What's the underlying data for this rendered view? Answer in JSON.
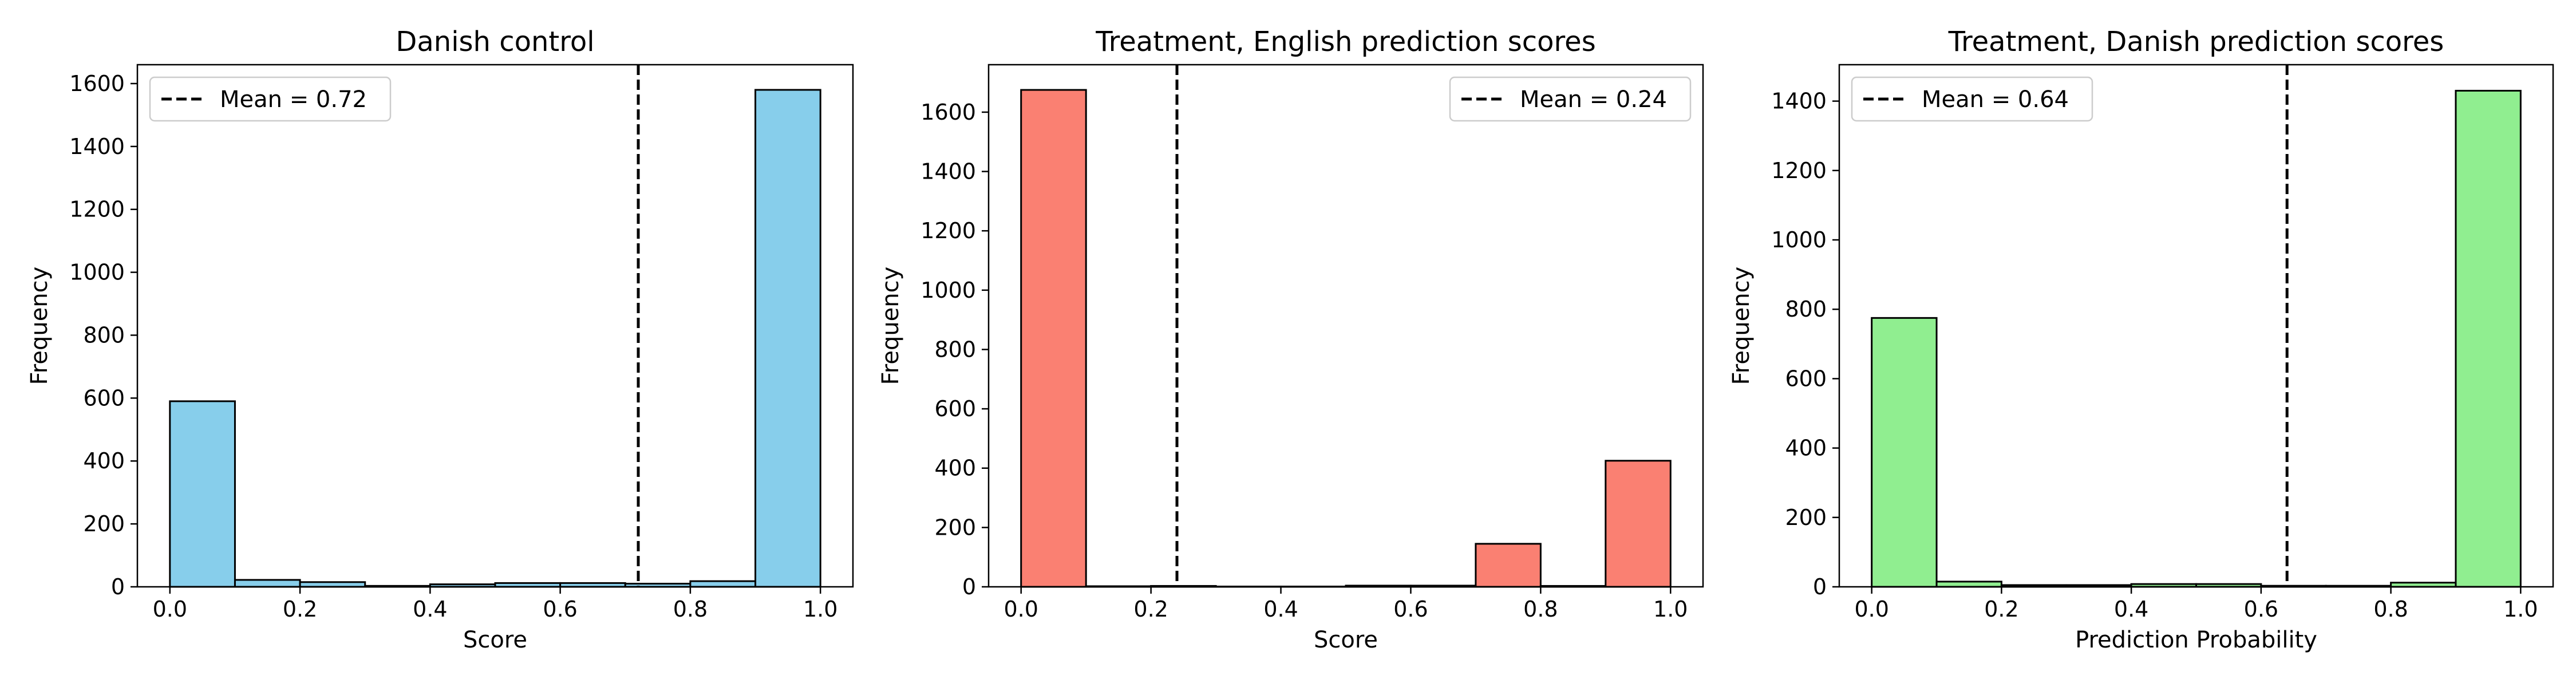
{
  "chart_data": [
    {
      "type": "bar",
      "title": "Danish control",
      "xlabel": "Score",
      "ylabel": "Frequency",
      "xlim": [
        -0.05,
        1.05
      ],
      "ylim": [
        0,
        1660
      ],
      "xticks": [
        0.0,
        0.2,
        0.4,
        0.6,
        0.8,
        1.0
      ],
      "xtick_labels": [
        "0.0",
        "0.2",
        "0.4",
        "0.6",
        "0.8",
        "1.0"
      ],
      "yticks": [
        0,
        200,
        400,
        600,
        800,
        1000,
        1200,
        1400,
        1600
      ],
      "ytick_labels": [
        "0",
        "200",
        "400",
        "600",
        "800",
        "1000",
        "1200",
        "1400",
        "1600"
      ],
      "bin_edges": [
        0.0,
        0.1,
        0.2,
        0.3,
        0.4,
        0.5,
        0.6,
        0.7,
        0.8,
        0.9,
        1.0
      ],
      "values": [
        590,
        22,
        15,
        3,
        8,
        12,
        12,
        10,
        18,
        1580
      ],
      "mean": 0.72,
      "legend_label": "Mean = 0.72",
      "legend_position": "upper left",
      "color": "#87ceeb",
      "grid": false
    },
    {
      "type": "bar",
      "title": "Treatment, English prediction scores",
      "xlabel": "Score",
      "ylabel": "Frequency",
      "xlim": [
        -0.05,
        1.05
      ],
      "ylim": [
        0,
        1760
      ],
      "xticks": [
        0.0,
        0.2,
        0.4,
        0.6,
        0.8,
        1.0
      ],
      "xtick_labels": [
        "0.0",
        "0.2",
        "0.4",
        "0.6",
        "0.8",
        "1.0"
      ],
      "yticks": [
        0,
        200,
        400,
        600,
        800,
        1000,
        1200,
        1400,
        1600
      ],
      "ytick_labels": [
        "0",
        "200",
        "400",
        "600",
        "800",
        "1000",
        "1200",
        "1400",
        "1600"
      ],
      "bin_edges": [
        0.0,
        0.1,
        0.2,
        0.3,
        0.4,
        0.5,
        0.6,
        0.7,
        0.8,
        0.9,
        1.0
      ],
      "values": [
        1675,
        2,
        3,
        1,
        1,
        4,
        4,
        145,
        3,
        425
      ],
      "mean": 0.24,
      "legend_label": "Mean = 0.24",
      "legend_position": "upper right",
      "color": "#fa8072",
      "grid": false
    },
    {
      "type": "bar",
      "title": "Treatment, Danish prediction scores",
      "xlabel": "Prediction Probability",
      "ylabel": "Frequency",
      "xlim": [
        -0.05,
        1.05
      ],
      "ylim": [
        0,
        1505
      ],
      "xticks": [
        0.0,
        0.2,
        0.4,
        0.6,
        0.8,
        1.0
      ],
      "xtick_labels": [
        "0.0",
        "0.2",
        "0.4",
        "0.6",
        "0.8",
        "1.0"
      ],
      "yticks": [
        0,
        200,
        400,
        600,
        800,
        1000,
        1200,
        1400
      ],
      "ytick_labels": [
        "0",
        "200",
        "400",
        "600",
        "800",
        "1000",
        "1200",
        "1400"
      ],
      "bin_edges": [
        0.0,
        0.1,
        0.2,
        0.3,
        0.4,
        0.5,
        0.6,
        0.7,
        0.8,
        0.9,
        1.0
      ],
      "values": [
        775,
        15,
        5,
        5,
        8,
        8,
        3,
        3,
        12,
        1430
      ],
      "mean": 0.64,
      "legend_label": "Mean = 0.64",
      "legend_position": "upper left",
      "color": "#90ee90",
      "grid": false
    }
  ]
}
